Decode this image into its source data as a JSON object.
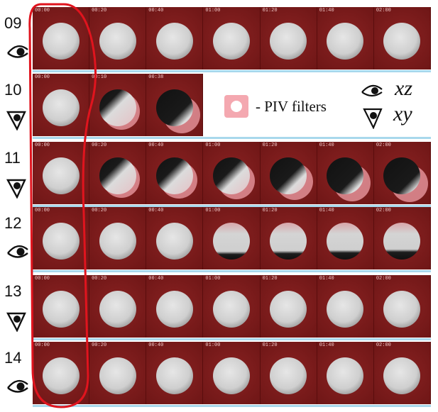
{
  "rows": [
    {
      "label": "09",
      "view": "xz",
      "times": [
        "00:00",
        "00:20",
        "00:40",
        "01:00",
        "01:20",
        "01:40",
        "02:00"
      ],
      "shadow": [
        0,
        0,
        0,
        0,
        0,
        0,
        0
      ],
      "shadowDir": "none"
    },
    {
      "label": "10",
      "view": "xy",
      "times": [
        "00:00",
        "00:10",
        "00:38"
      ],
      "shadow": [
        0,
        0.4,
        0.85
      ],
      "shadowDir": "ul"
    },
    {
      "label": "11",
      "view": "xy",
      "times": [
        "00:00",
        "00:20",
        "00:40",
        "01:00",
        "01:20",
        "01:40",
        "02:00"
      ],
      "shadow": [
        0,
        0.45,
        0.5,
        0.55,
        0.7,
        0.85,
        0.9
      ],
      "shadowDir": "ul"
    },
    {
      "label": "12",
      "view": "xz",
      "times": [
        "00:00",
        "00:20",
        "00:40",
        "01:00",
        "01:20",
        "01:40",
        "02:00"
      ],
      "shadow": [
        0,
        0,
        0,
        0.35,
        0.4,
        0.45,
        0.5
      ],
      "shadowDir": "down"
    },
    {
      "label": "13",
      "view": "xy",
      "times": [
        "00:00",
        "00:20",
        "00:40",
        "01:00",
        "01:20",
        "01:40",
        "02:00"
      ],
      "shadow": [
        0,
        0,
        0,
        0,
        0,
        0,
        0
      ],
      "shadowDir": "none"
    },
    {
      "label": "14",
      "view": "xz",
      "times": [
        "00:00",
        "00:20",
        "00:40",
        "01:00",
        "01:20",
        "01:40",
        "02:00"
      ],
      "shadow": [
        0,
        0,
        0,
        0,
        0,
        0,
        0
      ],
      "shadowDir": "none"
    }
  ],
  "legend": {
    "filter_text": "- PIV filters",
    "xz_label": "xz",
    "xy_label": "xy"
  },
  "colors": {
    "frame_bg": "#7a1a1a",
    "droplet": "#cfcfcf",
    "filter_pink": "#f0a0a8",
    "separator": "#a8d8ec",
    "highlight_outline": "#e0141e"
  }
}
